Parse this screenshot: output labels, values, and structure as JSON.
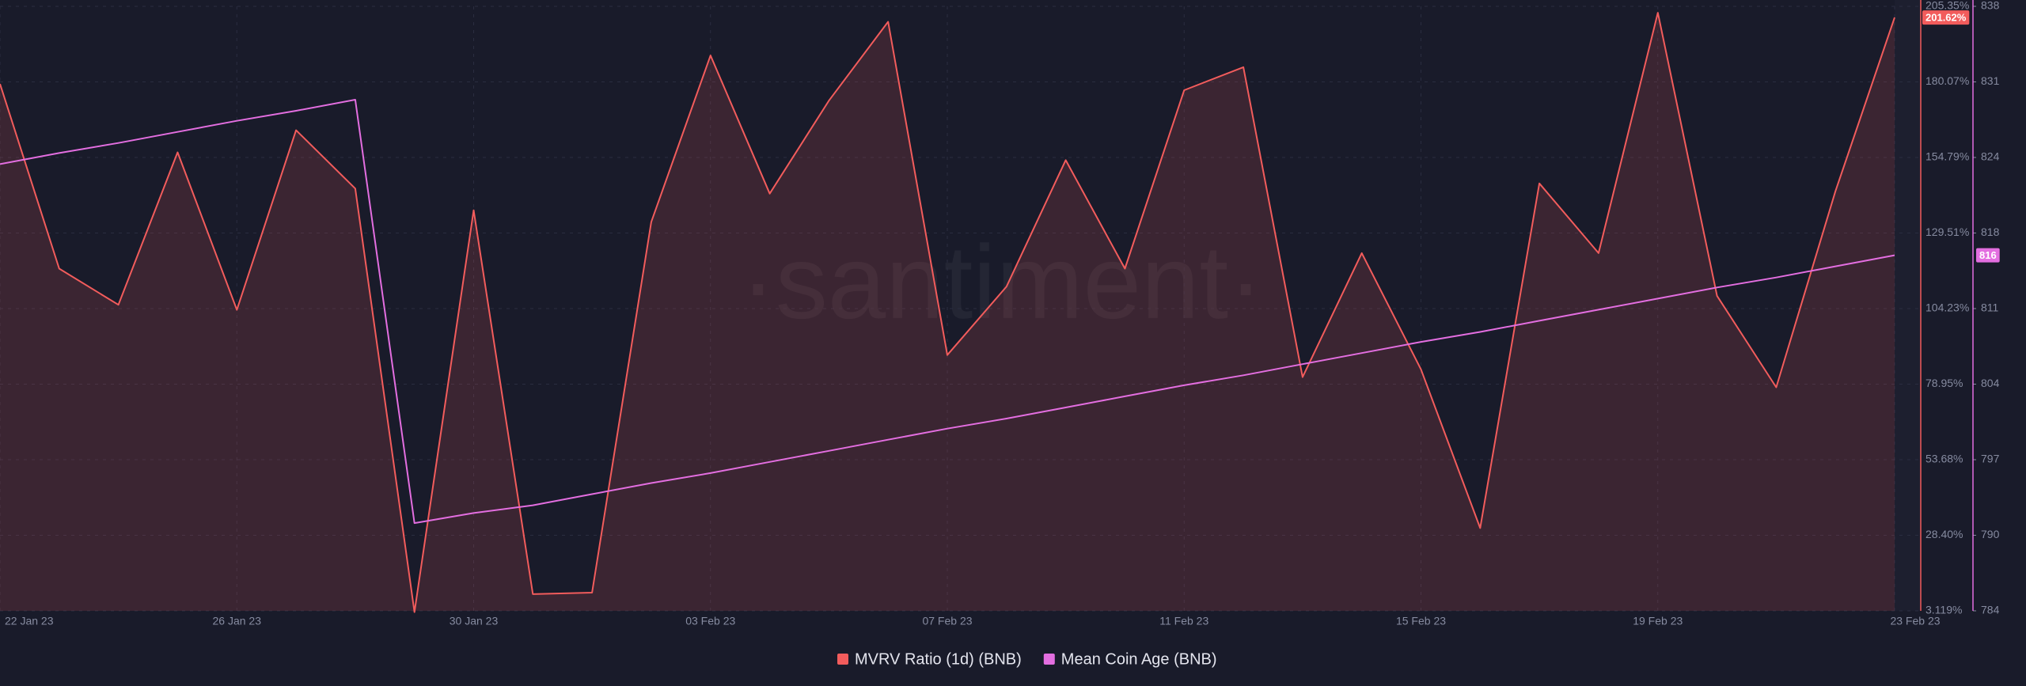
{
  "chart_data": {
    "type": "line",
    "watermark": "·santiment·",
    "categories": [
      "22 Jan 23",
      null,
      null,
      null,
      "26 Jan 23",
      null,
      null,
      null,
      "30 Jan 23",
      null,
      null,
      null,
      "03 Feb 23",
      null,
      null,
      null,
      "07 Feb 23",
      null,
      null,
      null,
      "11 Feb 23",
      null,
      null,
      null,
      "15 Feb 23",
      null,
      null,
      null,
      "19 Feb 23",
      null,
      null,
      null,
      "23 Feb 23"
    ],
    "series": [
      {
        "name": "MVRV Ratio (1d) (BNB)",
        "color": "#f25c5c",
        "area": true,
        "current_label": "201.62%",
        "values": [
          179.4,
          117.6,
          105.5,
          156.5,
          103.8,
          163.9,
          144.4,
          2.7,
          137.1,
          8.7,
          9.2,
          133.2,
          188.9,
          142.7,
          173.8,
          200.2,
          88.7,
          111.6,
          153.9,
          117.6,
          177.3,
          185.0,
          81.3,
          122.8,
          83.9,
          30.8,
          146.1,
          122.8,
          203.2,
          108.5,
          77.9,
          143.5,
          201.62
        ]
      },
      {
        "name": "Mean Coin Age (BNB)",
        "color": "#e36ee0",
        "axis": "y2",
        "current_label": "816",
        "values": [
          823.8,
          824.8,
          825.7,
          826.7,
          827.7,
          828.6,
          829.6,
          791.5,
          792.4,
          793.1,
          794.1,
          795.1,
          796.0,
          797.0,
          798.0,
          799.0,
          800.0,
          800.9,
          801.9,
          802.9,
          803.9,
          804.8,
          805.8,
          806.8,
          807.8,
          808.7,
          809.7,
          810.7,
          811.7,
          812.7,
          813.6,
          814.6,
          815.6
        ]
      }
    ],
    "ylim": [
      3.119,
      205.35
    ],
    "yticks": [
      {
        "value": 3.119,
        "label": "3.119%"
      },
      {
        "value": 28.4,
        "label": "28.40%"
      },
      {
        "value": 53.68,
        "label": "53.68%"
      },
      {
        "value": 78.95,
        "label": "78.95%"
      },
      {
        "value": 104.23,
        "label": "104.23%"
      },
      {
        "value": 129.51,
        "label": "129.51%"
      },
      {
        "value": 154.79,
        "label": "154.79%"
      },
      {
        "value": 180.07,
        "label": "180.07%"
      },
      {
        "value": 205.35,
        "label": "205.35%"
      }
    ],
    "y2lim": [
      783.6,
      838.0
    ],
    "y2ticks": [
      {
        "value": 783.6,
        "label": "784"
      },
      {
        "value": 790.4,
        "label": "790"
      },
      {
        "value": 797.2,
        "label": "797"
      },
      {
        "value": 804.0,
        "label": "804"
      },
      {
        "value": 810.8,
        "label": "811"
      },
      {
        "value": 817.6,
        "label": "818"
      },
      {
        "value": 824.4,
        "label": "824"
      },
      {
        "value": 831.2,
        "label": "831"
      },
      {
        "value": 838.0,
        "label": "838"
      }
    ],
    "grid": true,
    "legend": "bottom"
  }
}
